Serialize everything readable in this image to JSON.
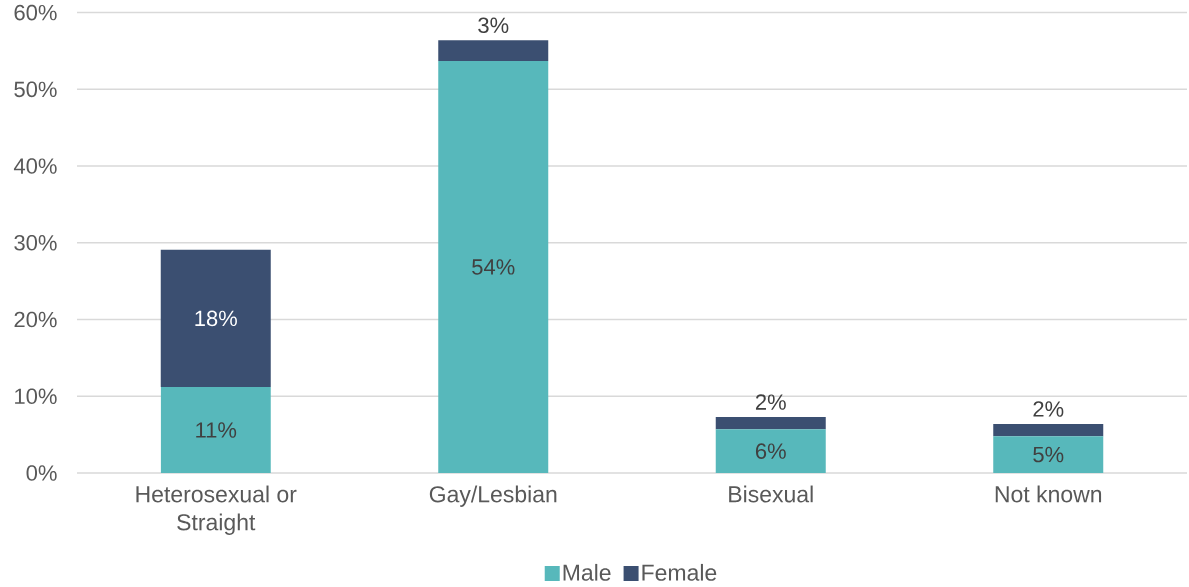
{
  "chart_data": {
    "type": "bar",
    "stacked": true,
    "categories": [
      "Heterosexual or Straight",
      "Gay/Lesbian",
      "Bisexual",
      "Not known"
    ],
    "series": [
      {
        "name": "Male",
        "color": "#57b8bb",
        "values": [
          11.2,
          53.7,
          5.7,
          4.8
        ],
        "value_labels": [
          "11%",
          "54%",
          "6%",
          "5%"
        ]
      },
      {
        "name": "Female",
        "color": "#3b4f71",
        "values": [
          17.9,
          2.7,
          1.6,
          1.6
        ],
        "value_labels": [
          "18%",
          "3%",
          "2%",
          "2%"
        ]
      }
    ],
    "ylim": [
      0,
      60
    ],
    "yticks": [
      {
        "value": 0,
        "label": "0%"
      },
      {
        "value": 10,
        "label": "10%"
      },
      {
        "value": 20,
        "label": "20%"
      },
      {
        "value": 30,
        "label": "30%"
      },
      {
        "value": 40,
        "label": "40%"
      },
      {
        "value": 50,
        "label": "50%"
      },
      {
        "value": 60,
        "label": "60%"
      }
    ],
    "grid": "y",
    "legend": "bottom"
  }
}
